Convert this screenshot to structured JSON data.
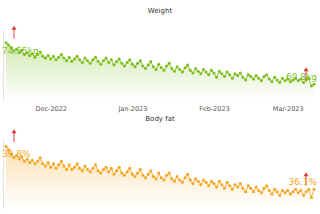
{
  "chart_data": [
    {
      "type": "line",
      "title": "Weight",
      "color": "#7cbf1e",
      "marker": "circle",
      "tick_labels": "x",
      "ylim": [
        68,
        76
      ],
      "categories": [
        null,
        null,
        null,
        null,
        null,
        null,
        null,
        null,
        null,
        null,
        null,
        null,
        null,
        null,
        null,
        null,
        null,
        "Dec-2022",
        null,
        null,
        null,
        null,
        null,
        null,
        null,
        null,
        null,
        null,
        null,
        null,
        null,
        null,
        null,
        null,
        null,
        null,
        null,
        null,
        null,
        null,
        null,
        null,
        null,
        null,
        null,
        null,
        null,
        null,
        "Jan-2023",
        null,
        null,
        null,
        null,
        null,
        null,
        null,
        null,
        null,
        null,
        null,
        null,
        null,
        null,
        null,
        null,
        null,
        null,
        null,
        null,
        null,
        null,
        null,
        null,
        null,
        null,
        null,
        null,
        null,
        null,
        "Feb-2023",
        null,
        null,
        null,
        null,
        null,
        null,
        null,
        null,
        null,
        null,
        null,
        null,
        null,
        null,
        null,
        null,
        null,
        null,
        null,
        null,
        null,
        null,
        null,
        null,
        null,
        null,
        null,
        "Mar-2023",
        null,
        null,
        null,
        null,
        null,
        null,
        null,
        null,
        null,
        null
      ],
      "values": [
        74.55,
        74.3,
        74.0,
        73.6,
        73.8,
        73.5,
        73.7,
        73.2,
        73.4,
        73.1,
        73.3,
        72.9,
        73.2,
        73.5,
        73.0,
        72.8,
        73.1,
        72.7,
        73.0,
        72.6,
        72.9,
        73.2,
        72.8,
        72.5,
        72.9,
        72.4,
        72.7,
        73.0,
        72.6,
        72.3,
        72.8,
        72.5,
        72.2,
        72.6,
        72.9,
        72.4,
        72.1,
        72.5,
        72.8,
        72.3,
        72.6,
        72.0,
        72.4,
        72.7,
        72.2,
        71.9,
        72.3,
        72.6,
        72.1,
        71.8,
        72.2,
        72.5,
        71.9,
        71.6,
        72.0,
        72.4,
        71.8,
        71.5,
        72.1,
        71.7,
        71.4,
        71.9,
        72.2,
        71.6,
        71.3,
        71.8,
        71.5,
        71.2,
        71.7,
        72.0,
        71.4,
        71.1,
        71.6,
        71.3,
        71.0,
        71.5,
        71.2,
        70.9,
        71.4,
        71.1,
        70.6,
        71.3,
        71.0,
        70.7,
        71.2,
        70.9,
        70.5,
        71.0,
        70.8,
        71.1,
        70.6,
        70.3,
        70.9,
        70.7,
        70.4,
        70.8,
        70.5,
        70.2,
        70.7,
        70.9,
        70.4,
        70.1,
        70.6,
        70.3,
        70.0,
        70.5,
        70.2,
        70.4,
        70.1,
        70.3,
        70.5,
        70.2,
        70.4,
        70.0,
        70.3,
        70.5,
        69.6,
        69.8
      ],
      "value_labels": [
        "74.55kg",
        null,
        null,
        null,
        null,
        null,
        null,
        null,
        null,
        null,
        null,
        null,
        null,
        null,
        null,
        null,
        null,
        null,
        null,
        null,
        null,
        null,
        null,
        null,
        null,
        null,
        null,
        null,
        null,
        null,
        null,
        null,
        null,
        null,
        null,
        null,
        null,
        null,
        null,
        null,
        null,
        null,
        null,
        null,
        null,
        null,
        null,
        null,
        null,
        null,
        null,
        null,
        null,
        null,
        null,
        null,
        null,
        null,
        null,
        null,
        null,
        null,
        null,
        null,
        null,
        null,
        null,
        null,
        null,
        null,
        null,
        null,
        null,
        null,
        null,
        null,
        null,
        null,
        null,
        null,
        null,
        null,
        null,
        null,
        null,
        null,
        null,
        null,
        null,
        null,
        null,
        null,
        null,
        null,
        null,
        null,
        null,
        null,
        null,
        null,
        null,
        null,
        null,
        null,
        null,
        null,
        null,
        null,
        null,
        null,
        null,
        null,
        null,
        null,
        null,
        null,
        null,
        "69.8kg"
      ]
    },
    {
      "type": "line",
      "title": "Body fat",
      "color": "#f5a623",
      "marker": "circle",
      "tick_labels": false,
      "ylim": [
        34.5,
        40.5
      ],
      "categories": [
        null,
        null,
        null,
        null,
        null,
        null,
        null,
        null,
        null,
        null,
        null,
        null,
        null,
        null,
        null,
        null,
        null,
        null,
        null,
        null,
        null,
        null,
        null,
        null,
        null,
        null,
        null,
        null,
        null,
        null,
        null,
        null,
        null,
        null,
        null,
        null,
        null,
        null,
        null,
        null,
        null,
        null,
        null,
        null,
        null,
        null,
        null,
        null,
        null,
        null,
        null,
        null,
        null,
        null,
        null,
        null,
        null,
        null,
        null,
        null,
        null,
        null,
        null,
        null,
        null,
        null,
        null,
        null,
        null,
        null,
        null,
        null,
        null,
        null,
        null,
        null,
        null,
        null,
        null,
        null,
        null,
        null,
        null,
        null,
        null,
        null,
        null,
        null,
        null,
        null,
        null,
        null,
        null,
        null,
        null,
        null,
        null,
        null,
        null,
        null,
        null,
        null,
        null,
        null,
        null,
        null,
        null,
        null,
        null,
        null,
        null,
        null,
        null,
        null,
        null,
        null,
        null,
        null
      ],
      "values": [
        39.8,
        39.5,
        39.1,
        38.8,
        39.0,
        38.7,
        38.9,
        38.5,
        38.7,
        38.4,
        38.6,
        38.3,
        38.5,
        38.8,
        38.3,
        38.1,
        38.4,
        38.0,
        38.3,
        37.9,
        38.2,
        38.5,
        38.1,
        37.8,
        38.2,
        37.8,
        38.0,
        38.3,
        37.9,
        37.7,
        38.1,
        37.8,
        37.6,
        37.9,
        38.2,
        37.7,
        37.5,
        37.8,
        38.0,
        37.6,
        37.9,
        37.4,
        37.7,
        38.0,
        37.5,
        37.3,
        37.6,
        37.9,
        37.4,
        37.2,
        37.5,
        37.8,
        37.3,
        37.1,
        37.4,
        37.7,
        37.2,
        37.0,
        37.5,
        37.1,
        36.9,
        37.3,
        37.5,
        37.0,
        36.8,
        37.2,
        36.9,
        36.7,
        37.1,
        37.4,
        36.9,
        36.6,
        37.0,
        36.8,
        36.5,
        36.9,
        36.7,
        36.4,
        36.8,
        36.6,
        36.3,
        36.8,
        36.5,
        36.2,
        36.7,
        36.4,
        36.1,
        36.5,
        36.3,
        36.6,
        36.2,
        35.9,
        36.4,
        36.2,
        35.9,
        36.3,
        36.0,
        35.8,
        36.2,
        36.4,
        36.0,
        35.7,
        36.1,
        35.9,
        35.6,
        36.0,
        35.8,
        36.0,
        35.7,
        35.9,
        36.1,
        35.8,
        36.0,
        35.6,
        35.9,
        36.1,
        35.4,
        36.1
      ],
      "value_labels": [
        "39.8%",
        null,
        null,
        null,
        null,
        null,
        null,
        null,
        null,
        null,
        null,
        null,
        null,
        null,
        null,
        null,
        null,
        null,
        null,
        null,
        null,
        null,
        null,
        null,
        null,
        null,
        null,
        null,
        null,
        null,
        null,
        null,
        null,
        null,
        null,
        null,
        null,
        null,
        null,
        null,
        null,
        null,
        null,
        null,
        null,
        null,
        null,
        null,
        null,
        null,
        null,
        null,
        null,
        null,
        null,
        null,
        null,
        null,
        null,
        null,
        null,
        null,
        null,
        null,
        null,
        null,
        null,
        null,
        null,
        null,
        null,
        null,
        null,
        null,
        null,
        null,
        null,
        null,
        null,
        null,
        null,
        null,
        null,
        null,
        null,
        null,
        null,
        null,
        null,
        null,
        null,
        null,
        null,
        null,
        null,
        null,
        null,
        null,
        null,
        null,
        null,
        null,
        null,
        null,
        null,
        null,
        null,
        null,
        null,
        null,
        null,
        null,
        null,
        null,
        null,
        null,
        null,
        "36.1%"
      ]
    }
  ]
}
